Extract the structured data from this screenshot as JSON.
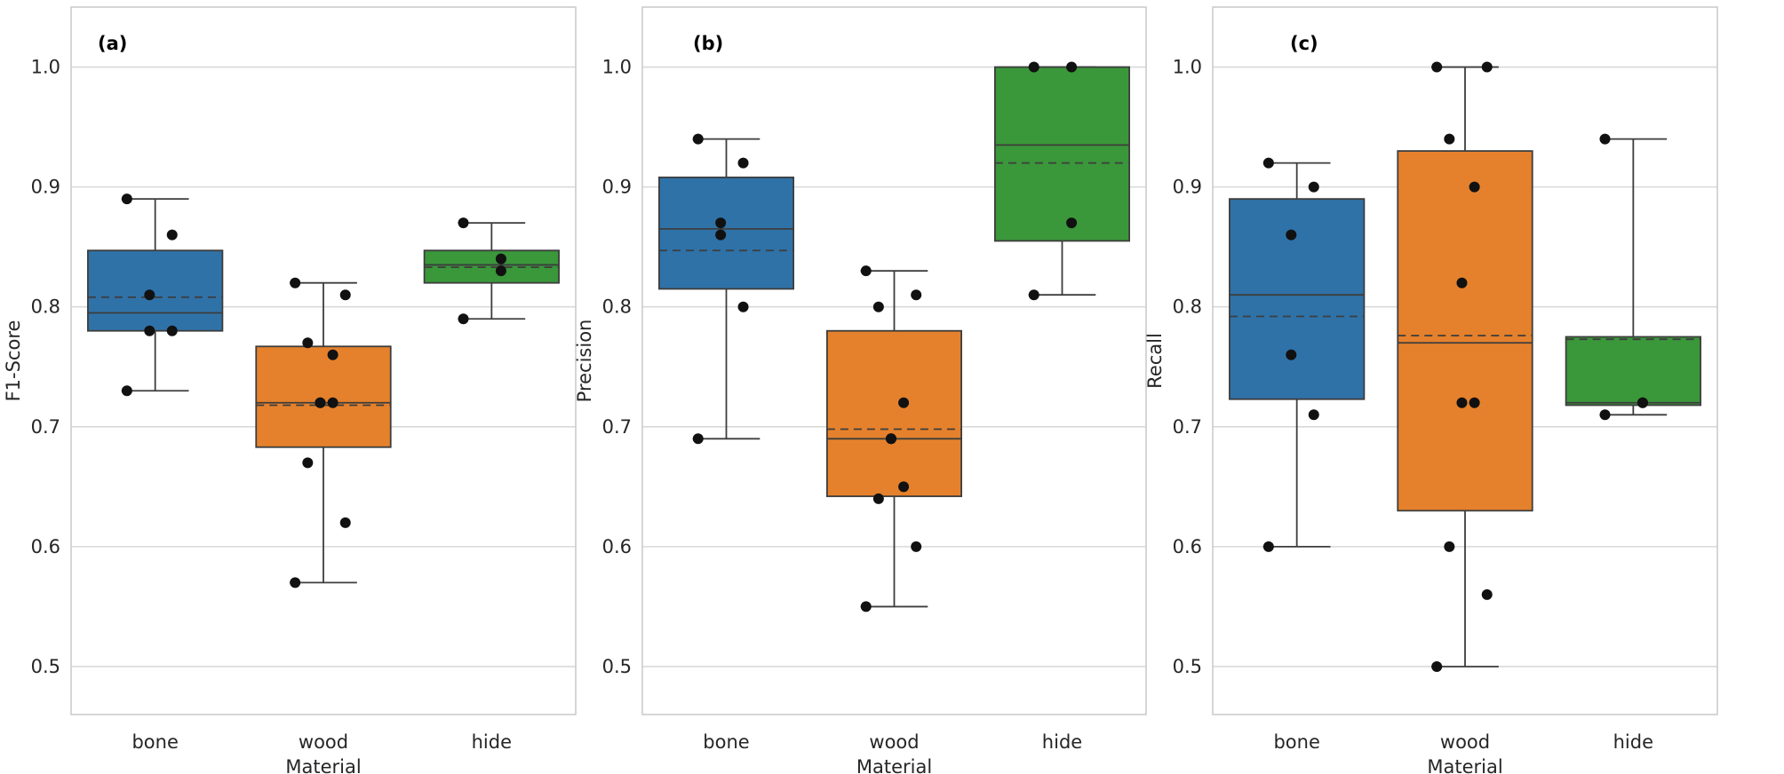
{
  "figure": {
    "xlabel": "Material"
  },
  "chart_data": [
    {
      "type": "box",
      "panel_label": "(a)",
      "ylabel": "F1-Score",
      "xlabel": "Material",
      "categories": [
        "bone",
        "wood",
        "hide"
      ],
      "colors": [
        "#2f72a8",
        "#e5812c",
        "#3a973a"
      ],
      "ylim": [
        0.46,
        1.05
      ],
      "yticks": [
        "0.5",
        "0.6",
        "0.7",
        "0.8",
        "0.9",
        "1.0"
      ],
      "grid": true,
      "boxes": [
        {
          "category": "bone",
          "whisker_low": 0.73,
          "q1": 0.78,
          "median": 0.795,
          "mean": 0.808,
          "q3": 0.847,
          "whisker_high": 0.89,
          "points": [
            0.89,
            0.86,
            0.81,
            0.78,
            0.78,
            0.73
          ]
        },
        {
          "category": "wood",
          "whisker_low": 0.57,
          "q1": 0.683,
          "median": 0.72,
          "mean": 0.718,
          "q3": 0.767,
          "whisker_high": 0.82,
          "points": [
            0.82,
            0.81,
            0.77,
            0.76,
            0.72,
            0.72,
            0.72,
            0.67,
            0.62,
            0.57
          ]
        },
        {
          "category": "hide",
          "whisker_low": 0.79,
          "q1": 0.82,
          "median": 0.835,
          "mean": 0.833,
          "q3": 0.847,
          "whisker_high": 0.87,
          "points": [
            0.87,
            0.84,
            0.83,
            0.79
          ]
        }
      ]
    },
    {
      "type": "box",
      "panel_label": "(b)",
      "ylabel": "Precision",
      "xlabel": "Material",
      "categories": [
        "bone",
        "wood",
        "hide"
      ],
      "colors": [
        "#2f72a8",
        "#e5812c",
        "#3a973a"
      ],
      "ylim": [
        0.46,
        1.05
      ],
      "yticks": [
        "0.5",
        "0.6",
        "0.7",
        "0.8",
        "0.9",
        "1.0"
      ],
      "grid": true,
      "boxes": [
        {
          "category": "bone",
          "whisker_low": 0.69,
          "q1": 0.815,
          "median": 0.865,
          "mean": 0.847,
          "q3": 0.908,
          "whisker_high": 0.94,
          "points": [
            0.94,
            0.92,
            0.87,
            0.86,
            0.8,
            0.69
          ]
        },
        {
          "category": "wood",
          "whisker_low": 0.55,
          "q1": 0.642,
          "median": 0.69,
          "mean": 0.698,
          "q3": 0.78,
          "whisker_high": 0.83,
          "points": [
            0.83,
            0.81,
            0.8,
            0.72,
            0.69,
            0.69,
            0.65,
            0.64,
            0.6,
            0.55
          ]
        },
        {
          "category": "hide",
          "whisker_low": 0.81,
          "q1": 0.855,
          "median": 0.935,
          "mean": 0.92,
          "q3": 1.0,
          "whisker_high": 1.0,
          "points": [
            1.0,
            1.0,
            0.87,
            0.81
          ]
        }
      ]
    },
    {
      "type": "box",
      "panel_label": "(c)",
      "ylabel": "Recall",
      "xlabel": "Material",
      "categories": [
        "bone",
        "wood",
        "hide"
      ],
      "colors": [
        "#2f72a8",
        "#e5812c",
        "#3a973a"
      ],
      "ylim": [
        0.46,
        1.05
      ],
      "yticks": [
        "0.5",
        "0.6",
        "0.7",
        "0.8",
        "0.9",
        "1.0"
      ],
      "grid": true,
      "boxes": [
        {
          "category": "bone",
          "whisker_low": 0.6,
          "q1": 0.723,
          "median": 0.81,
          "mean": 0.792,
          "q3": 0.89,
          "whisker_high": 0.92,
          "points": [
            0.92,
            0.9,
            0.86,
            0.76,
            0.71,
            0.6
          ]
        },
        {
          "category": "wood",
          "whisker_low": 0.5,
          "q1": 0.63,
          "median": 0.77,
          "mean": 0.776,
          "q3": 0.93,
          "whisker_high": 1.0,
          "points": [
            1.0,
            1.0,
            0.94,
            0.9,
            0.82,
            0.72,
            0.72,
            0.6,
            0.56,
            0.5
          ]
        },
        {
          "category": "hide",
          "whisker_low": 0.71,
          "q1": 0.718,
          "median": 0.72,
          "mean": 0.773,
          "q3": 0.775,
          "whisker_high": 0.94,
          "points": [
            0.94,
            0.72,
            0.72,
            0.71
          ]
        }
      ]
    }
  ]
}
